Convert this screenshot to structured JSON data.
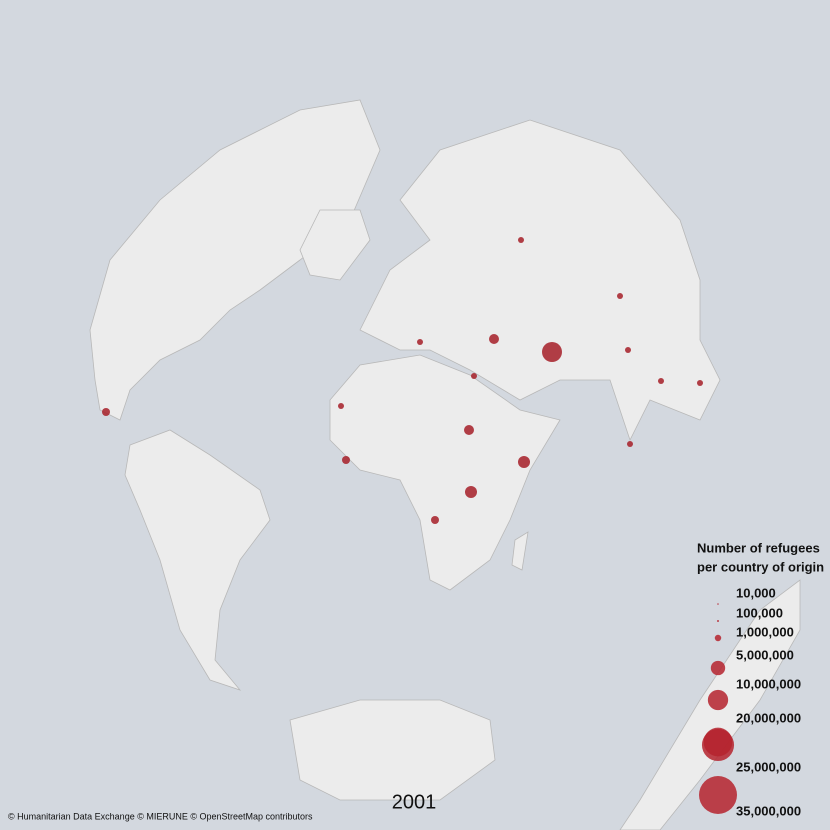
{
  "legend": {
    "title_line1": "Number of refugees",
    "title_line2": "per country of origin",
    "color": "#b5232e",
    "entries": [
      {
        "value": 10000,
        "label": "10,000"
      },
      {
        "value": 100000,
        "label": "100,000"
      },
      {
        "value": 1000000,
        "label": "1,000,000"
      },
      {
        "value": 5000000,
        "label": "5,000,000"
      },
      {
        "value": 10000000,
        "label": "10,000,000"
      },
      {
        "value": 20000000,
        "label": "20,000,000"
      },
      {
        "value": 25000000,
        "label": "25,000,000"
      },
      {
        "value": 35000000,
        "label": "35,000,000"
      }
    ]
  },
  "year": "2001",
  "attribution": "© Humanitarian Data Exchange ©  MIERUNE © OpenStreetMap contributors"
}
